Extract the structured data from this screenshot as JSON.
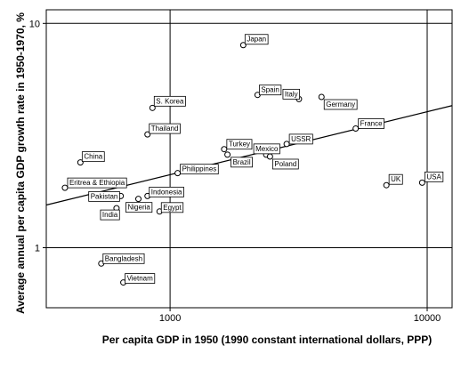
{
  "chart_data": {
    "type": "scatter",
    "title": "",
    "xlabel": "Per capita GDP in 1950 (1990 constant international dollars, PPP)",
    "ylabel": "Average annual per capita GDP growth rate in 1950-1970, %",
    "x_scale": "log",
    "y_scale": "log",
    "xlim": [
      330,
      12500
    ],
    "ylim": [
      0.54,
      11.5
    ],
    "x_ticks": [
      1000,
      10000
    ],
    "x_tick_labels": [
      "1000",
      "10000"
    ],
    "y_ticks": [
      1,
      10
    ],
    "y_tick_labels": [
      "1",
      "10"
    ],
    "reference_lines": {
      "x": [
        1000,
        10000
      ],
      "y": [
        1,
        10
      ]
    },
    "trend_line": {
      "x": [
        330,
        12500
      ],
      "y": [
        1.55,
        4.3
      ]
    },
    "grid": false,
    "legend": "none",
    "colors": {
      "points": "#000000",
      "trend": "#000000",
      "labels_border": "#000000"
    },
    "points": [
      {
        "name": "Japan",
        "x": 1926,
        "y": 8.0
      },
      {
        "name": "Spain",
        "x": 2189,
        "y": 4.8
      },
      {
        "name": "Italy",
        "x": 3172,
        "y": 4.6
      },
      {
        "name": "Germany",
        "x": 3881,
        "y": 4.7
      },
      {
        "name": "France",
        "x": 5271,
        "y": 3.4
      },
      {
        "name": "USSR",
        "x": 2841,
        "y": 2.9
      },
      {
        "name": "Mexico",
        "x": 2365,
        "y": 2.6
      },
      {
        "name": "Poland",
        "x": 2447,
        "y": 2.55
      },
      {
        "name": "Turkey",
        "x": 1623,
        "y": 2.75
      },
      {
        "name": "Brazil",
        "x": 1672,
        "y": 2.6
      },
      {
        "name": "S. Korea",
        "x": 854,
        "y": 4.2
      },
      {
        "name": "Thailand",
        "x": 817,
        "y": 3.2
      },
      {
        "name": "Philippines",
        "x": 1070,
        "y": 2.15
      },
      {
        "name": "China",
        "x": 448,
        "y": 2.4
      },
      {
        "name": "Eritrea & Ethiopia",
        "x": 390,
        "y": 1.85
      },
      {
        "name": "Pakistan",
        "x": 643,
        "y": 1.7
      },
      {
        "name": "Indonesia",
        "x": 817,
        "y": 1.7
      },
      {
        "name": "Nigeria",
        "x": 753,
        "y": 1.65
      },
      {
        "name": "India",
        "x": 619,
        "y": 1.5
      },
      {
        "name": "Egypt",
        "x": 910,
        "y": 1.45
      },
      {
        "name": "UK",
        "x": 6939,
        "y": 1.9
      },
      {
        "name": "USA",
        "x": 9561,
        "y": 1.95
      },
      {
        "name": "Bangladesh",
        "x": 540,
        "y": 0.85
      },
      {
        "name": "Vietnam",
        "x": 658,
        "y": 0.7
      }
    ]
  }
}
